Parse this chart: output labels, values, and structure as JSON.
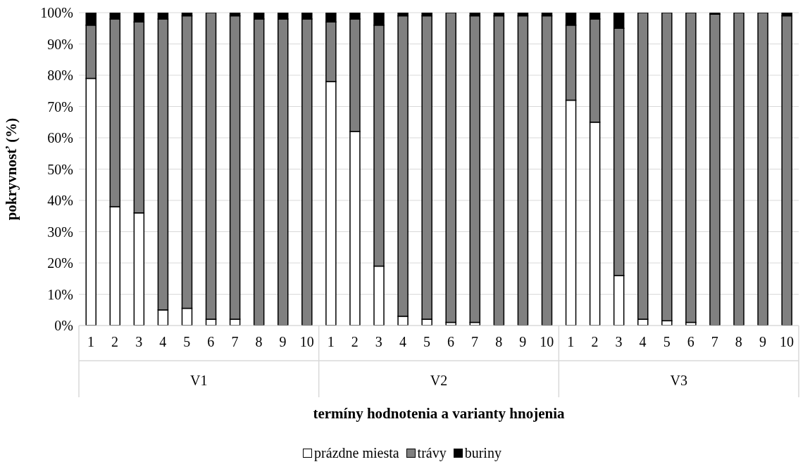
{
  "chart_data": {
    "type": "bar",
    "stacked": true,
    "categories": [
      "1",
      "2",
      "3",
      "4",
      "5",
      "6",
      "7",
      "8",
      "9",
      "10",
      "1",
      "2",
      "3",
      "4",
      "5",
      "6",
      "7",
      "8",
      "9",
      "10",
      "1",
      "2",
      "3",
      "4",
      "5",
      "6",
      "7",
      "8",
      "9",
      "10"
    ],
    "annotations": [
      "V1",
      "V2",
      "V3"
    ],
    "series": [
      {
        "name": "prázdne miesta",
        "color": "#ffffff",
        "values": [
          79,
          38,
          36,
          5,
          5.5,
          2,
          2,
          0,
          0,
          0,
          78,
          62,
          19,
          3,
          2,
          1,
          1,
          0,
          0,
          0,
          72,
          65,
          16,
          2,
          1.5,
          1,
          0,
          0,
          0,
          0
        ]
      },
      {
        "name": "trávy",
        "color": "#808080",
        "values": [
          17,
          60,
          61,
          93,
          93.5,
          98,
          97,
          98,
          98,
          98,
          19,
          36,
          77,
          96,
          97,
          99,
          98,
          99,
          99,
          99,
          24,
          33,
          79,
          98,
          98.5,
          99,
          99.5,
          100,
          100,
          99
        ]
      },
      {
        "name": "buriny",
        "color": "#000000",
        "values": [
          4,
          2,
          3,
          2,
          1,
          0,
          1,
          2,
          2,
          2,
          3,
          2,
          4,
          1,
          1,
          0,
          1,
          1,
          1,
          1,
          4,
          2,
          5,
          0,
          0,
          0,
          0.5,
          0,
          0,
          1
        ]
      }
    ],
    "ylim": [
      0,
      100
    ],
    "yticks": [
      {
        "value": 0,
        "label": "0%"
      },
      {
        "value": 10,
        "label": "10%"
      },
      {
        "value": 20,
        "label": "20%"
      },
      {
        "value": 30,
        "label": "30%"
      },
      {
        "value": 40,
        "label": "40%"
      },
      {
        "value": 50,
        "label": "50%"
      },
      {
        "value": 60,
        "label": "60%"
      },
      {
        "value": 70,
        "label": "70%"
      },
      {
        "value": 80,
        "label": "80%"
      },
      {
        "value": 90,
        "label": "90%"
      },
      {
        "value": 100,
        "label": "100%"
      }
    ],
    "xlabel": "termíny hodnotenia a varianty hnojenia",
    "ylabel": "pokryvnosť (%)",
    "grid": "y",
    "legend": "bottom"
  }
}
